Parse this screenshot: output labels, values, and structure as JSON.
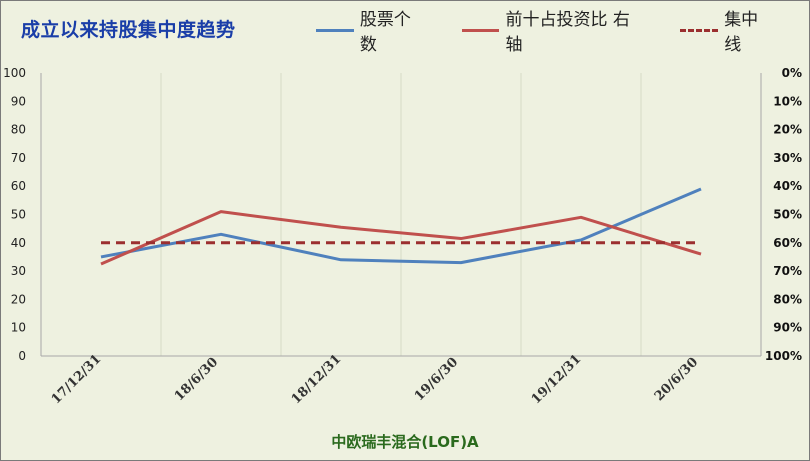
{
  "colors": {
    "background": "#eef1e0",
    "title": "#1a3ea8",
    "stock_count": "#4f81bd",
    "top10_ratio": "#c0504d",
    "center_line": "#9b2f2f",
    "fund_name": "#2a6a1d"
  },
  "chart_data": {
    "type": "line",
    "title": "成立以来持股集中度趋势",
    "subtitle": "中欧瑞丰混合(LOF)A",
    "categories": [
      "17/12/31",
      "18/6/30",
      "18/12/31",
      "19/6/30",
      "19/12/31",
      "20/6/30"
    ],
    "y_left": {
      "ticks": [
        "100",
        "90",
        "80",
        "70",
        "60",
        "50",
        "40",
        "30",
        "20",
        "10",
        "0"
      ],
      "ylim": [
        0,
        100
      ]
    },
    "y_right": {
      "ticks": [
        "0%",
        "10%",
        "20%",
        "30%",
        "40%",
        "50%",
        "60%",
        "70%",
        "80%",
        "90%",
        "100%"
      ],
      "reversed": true,
      "ylim": [
        0,
        100
      ]
    },
    "grid": "vertical",
    "legend_position": "top",
    "series": [
      {
        "name": "股票个数",
        "axis": "left",
        "style": "solid",
        "values": [
          35,
          43,
          34,
          33,
          41,
          59
        ]
      },
      {
        "name": "前十占投资比 右轴",
        "axis": "right",
        "style": "solid",
        "values": [
          67.5,
          49,
          54.5,
          58.5,
          51,
          64
        ]
      },
      {
        "name": "集中线",
        "axis": "right",
        "style": "dashed",
        "values": [
          60,
          60,
          60,
          60,
          60,
          60
        ]
      }
    ]
  }
}
